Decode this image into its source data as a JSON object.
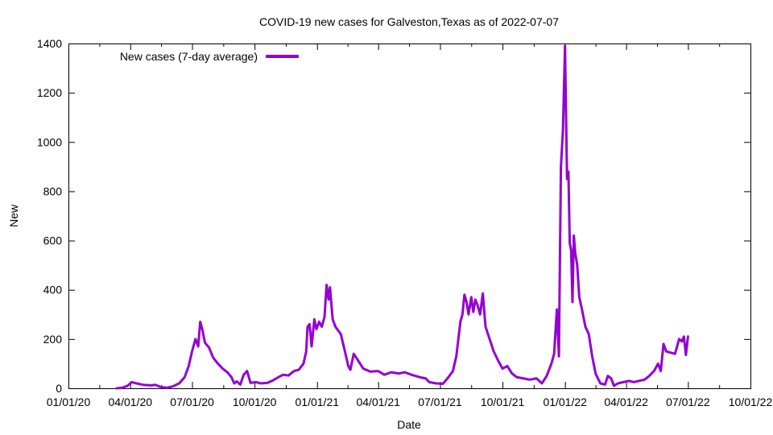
{
  "chart_data": {
    "type": "line",
    "title": "COVID-19 new cases for Galveston,Texas as of 2022-07-07",
    "xlabel": "Date",
    "ylabel": "New",
    "xlim": [
      "2020-01-01",
      "2022-10-01"
    ],
    "ylim": [
      0,
      1400
    ],
    "grid": false,
    "legend_position": "top-left",
    "x_ticks": [
      {
        "date": "2020-01-01",
        "label": "01/01/20"
      },
      {
        "date": "2020-04-01",
        "label": "04/01/20"
      },
      {
        "date": "2020-07-01",
        "label": "07/01/20"
      },
      {
        "date": "2020-10-01",
        "label": "10/01/20"
      },
      {
        "date": "2021-01-01",
        "label": "01/01/21"
      },
      {
        "date": "2021-04-01",
        "label": "04/01/21"
      },
      {
        "date": "2021-07-01",
        "label": "07/01/21"
      },
      {
        "date": "2021-10-01",
        "label": "10/01/21"
      },
      {
        "date": "2022-01-01",
        "label": "01/01/22"
      },
      {
        "date": "2022-04-01",
        "label": "04/01/22"
      },
      {
        "date": "2022-07-01",
        "label": "07/01/22"
      },
      {
        "date": "2022-10-01",
        "label": "10/01/22"
      }
    ],
    "y_ticks": [
      0,
      200,
      400,
      600,
      800,
      1000,
      1200,
      1400
    ],
    "series": [
      {
        "name": "New cases (7-day average)",
        "color": "#9400d3",
        "points": [
          [
            "2020-03-12",
            0
          ],
          [
            "2020-03-20",
            2
          ],
          [
            "2020-03-28",
            10
          ],
          [
            "2020-04-03",
            25
          ],
          [
            "2020-04-10",
            20
          ],
          [
            "2020-04-20",
            14
          ],
          [
            "2020-05-01",
            12
          ],
          [
            "2020-05-08",
            14
          ],
          [
            "2020-05-16",
            5
          ],
          [
            "2020-05-25",
            2
          ],
          [
            "2020-06-03",
            8
          ],
          [
            "2020-06-12",
            20
          ],
          [
            "2020-06-20",
            45
          ],
          [
            "2020-06-26",
            90
          ],
          [
            "2020-07-01",
            150
          ],
          [
            "2020-07-06",
            200
          ],
          [
            "2020-07-10",
            170
          ],
          [
            "2020-07-13",
            270
          ],
          [
            "2020-07-16",
            240
          ],
          [
            "2020-07-20",
            185
          ],
          [
            "2020-07-26",
            165
          ],
          [
            "2020-08-01",
            125
          ],
          [
            "2020-08-08",
            100
          ],
          [
            "2020-08-15",
            80
          ],
          [
            "2020-08-22",
            65
          ],
          [
            "2020-08-28",
            45
          ],
          [
            "2020-09-01",
            20
          ],
          [
            "2020-09-05",
            28
          ],
          [
            "2020-09-10",
            15
          ],
          [
            "2020-09-15",
            55
          ],
          [
            "2020-09-20",
            70
          ],
          [
            "2020-09-25",
            22
          ],
          [
            "2020-10-03",
            25
          ],
          [
            "2020-10-10",
            20
          ],
          [
            "2020-10-20",
            22
          ],
          [
            "2020-10-28",
            32
          ],
          [
            "2020-11-05",
            45
          ],
          [
            "2020-11-12",
            55
          ],
          [
            "2020-11-20",
            52
          ],
          [
            "2020-11-28",
            70
          ],
          [
            "2020-12-05",
            75
          ],
          [
            "2020-12-12",
            100
          ],
          [
            "2020-12-16",
            150
          ],
          [
            "2020-12-18",
            250
          ],
          [
            "2020-12-21",
            260
          ],
          [
            "2020-12-24",
            170
          ],
          [
            "2020-12-28",
            280
          ],
          [
            "2020-12-31",
            240
          ],
          [
            "2021-01-04",
            270
          ],
          [
            "2021-01-08",
            250
          ],
          [
            "2021-01-12",
            290
          ],
          [
            "2021-01-15",
            420
          ],
          [
            "2021-01-18",
            360
          ],
          [
            "2021-01-20",
            410
          ],
          [
            "2021-01-24",
            280
          ],
          [
            "2021-01-28",
            250
          ],
          [
            "2021-02-05",
            220
          ],
          [
            "2021-02-11",
            150
          ],
          [
            "2021-02-16",
            90
          ],
          [
            "2021-02-19",
            75
          ],
          [
            "2021-02-24",
            140
          ],
          [
            "2021-03-03",
            110
          ],
          [
            "2021-03-10",
            80
          ],
          [
            "2021-03-20",
            68
          ],
          [
            "2021-04-01",
            70
          ],
          [
            "2021-04-10",
            55
          ],
          [
            "2021-04-20",
            65
          ],
          [
            "2021-05-01",
            60
          ],
          [
            "2021-05-10",
            65
          ],
          [
            "2021-05-20",
            55
          ],
          [
            "2021-06-01",
            45
          ],
          [
            "2021-06-10",
            40
          ],
          [
            "2021-06-15",
            25
          ],
          [
            "2021-06-25",
            20
          ],
          [
            "2021-07-05",
            18
          ],
          [
            "2021-07-12",
            40
          ],
          [
            "2021-07-20",
            70
          ],
          [
            "2021-07-25",
            130
          ],
          [
            "2021-07-28",
            200
          ],
          [
            "2021-07-31",
            270
          ],
          [
            "2021-08-03",
            300
          ],
          [
            "2021-08-06",
            380
          ],
          [
            "2021-08-09",
            350
          ],
          [
            "2021-08-12",
            300
          ],
          [
            "2021-08-16",
            370
          ],
          [
            "2021-08-19",
            310
          ],
          [
            "2021-08-22",
            360
          ],
          [
            "2021-08-25",
            340
          ],
          [
            "2021-08-29",
            300
          ],
          [
            "2021-09-02",
            385
          ],
          [
            "2021-09-06",
            250
          ],
          [
            "2021-09-12",
            200
          ],
          [
            "2021-09-18",
            150
          ],
          [
            "2021-09-25",
            110
          ],
          [
            "2021-10-01",
            80
          ],
          [
            "2021-10-08",
            90
          ],
          [
            "2021-10-15",
            60
          ],
          [
            "2021-10-22",
            45
          ],
          [
            "2021-11-01",
            40
          ],
          [
            "2021-11-10",
            35
          ],
          [
            "2021-11-20",
            40
          ],
          [
            "2021-11-28",
            20
          ],
          [
            "2021-12-05",
            50
          ],
          [
            "2021-12-12",
            100
          ],
          [
            "2021-12-16",
            140
          ],
          [
            "2021-12-20",
            320
          ],
          [
            "2021-12-23",
            130
          ],
          [
            "2021-12-26",
            900
          ],
          [
            "2021-12-29",
            1050
          ],
          [
            "2022-01-01",
            1390
          ],
          [
            "2022-01-04",
            850
          ],
          [
            "2022-01-06",
            880
          ],
          [
            "2022-01-08",
            590
          ],
          [
            "2022-01-10",
            560
          ],
          [
            "2022-01-12",
            350
          ],
          [
            "2022-01-14",
            620
          ],
          [
            "2022-01-16",
            550
          ],
          [
            "2022-01-19",
            500
          ],
          [
            "2022-01-22",
            370
          ],
          [
            "2022-01-26",
            320
          ],
          [
            "2022-01-31",
            250
          ],
          [
            "2022-02-05",
            220
          ],
          [
            "2022-02-10",
            130
          ],
          [
            "2022-02-15",
            60
          ],
          [
            "2022-02-22",
            20
          ],
          [
            "2022-03-01",
            15
          ],
          [
            "2022-03-05",
            50
          ],
          [
            "2022-03-10",
            40
          ],
          [
            "2022-03-14",
            10
          ],
          [
            "2022-03-20",
            20
          ],
          [
            "2022-03-28",
            25
          ],
          [
            "2022-04-05",
            30
          ],
          [
            "2022-04-12",
            25
          ],
          [
            "2022-04-20",
            30
          ],
          [
            "2022-04-28",
            35
          ],
          [
            "2022-05-05",
            50
          ],
          [
            "2022-05-12",
            70
          ],
          [
            "2022-05-18",
            100
          ],
          [
            "2022-05-22",
            70
          ],
          [
            "2022-05-26",
            180
          ],
          [
            "2022-05-30",
            150
          ],
          [
            "2022-06-05",
            145
          ],
          [
            "2022-06-12",
            140
          ],
          [
            "2022-06-18",
            200
          ],
          [
            "2022-06-22",
            190
          ],
          [
            "2022-06-25",
            210
          ],
          [
            "2022-06-28",
            135
          ],
          [
            "2022-07-01",
            210
          ]
        ]
      }
    ]
  }
}
